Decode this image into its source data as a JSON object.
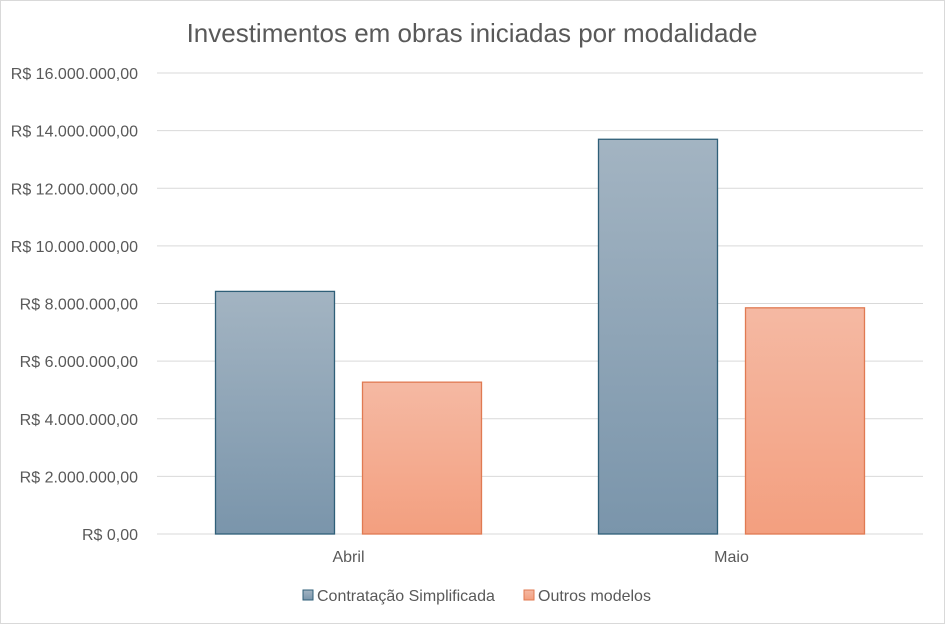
{
  "chart_data": {
    "type": "bar",
    "title": "Investimentos em obras iniciadas por modalidade",
    "categories": [
      "Abril",
      "Maio"
    ],
    "series": [
      {
        "name": "Contratação Simplificada",
        "values": [
          8420000,
          13700000
        ],
        "color_top": "#a3b4c2",
        "color_bottom": "#7a95ab",
        "stroke": "#2f5f78"
      },
      {
        "name": "Outros modelos",
        "values": [
          5270000,
          7850000
        ],
        "color_top": "#f5b9a3",
        "color_bottom": "#f39f7f",
        "stroke": "#e07a52"
      }
    ],
    "ylim": [
      0,
      16000000
    ],
    "y_ticks": [
      {
        "value": 0,
        "label": "R$ 0,00"
      },
      {
        "value": 2000000,
        "label": "R$ 2.000.000,00"
      },
      {
        "value": 4000000,
        "label": "R$ 4.000.000,00"
      },
      {
        "value": 6000000,
        "label": "R$ 6.000.000,00"
      },
      {
        "value": 8000000,
        "label": "R$ 8.000.000,00"
      },
      {
        "value": 10000000,
        "label": "R$ 10.000.000,00"
      },
      {
        "value": 12000000,
        "label": "R$ 12.000.000,00"
      },
      {
        "value": 14000000,
        "label": "R$ 14.000.000,00"
      },
      {
        "value": 16000000,
        "label": "R$ 16.000.000,00"
      }
    ],
    "grid": true,
    "legend_position": "bottom"
  }
}
